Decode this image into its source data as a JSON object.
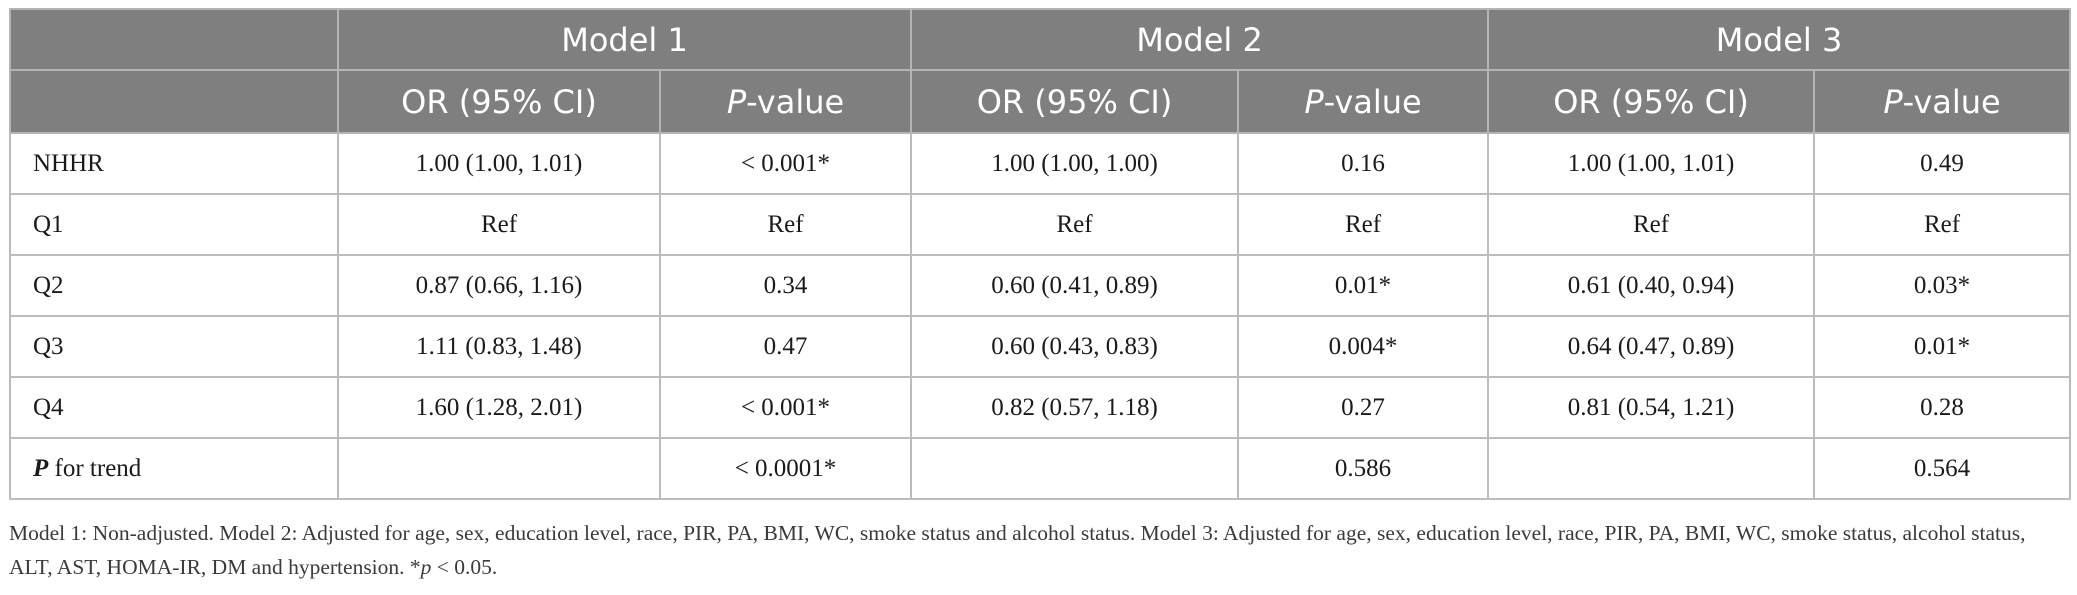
{
  "table": {
    "model_headers": [
      "Model 1",
      "Model 2",
      "Model 3"
    ],
    "sub_headers": {
      "or_label": "OR (95% CI)",
      "p_letter": "P",
      "p_rest": "-value"
    },
    "rows": [
      {
        "label": "NHHR",
        "cells": [
          "1.00 (1.00, 1.01)",
          "< 0.001*",
          "1.00 (1.00, 1.00)",
          "0.16",
          "1.00 (1.00, 1.01)",
          "0.49"
        ]
      },
      {
        "label": "Q1",
        "cells": [
          "Ref",
          "Ref",
          "Ref",
          "Ref",
          "Ref",
          "Ref"
        ]
      },
      {
        "label": "Q2",
        "cells": [
          "0.87 (0.66, 1.16)",
          "0.34",
          "0.60 (0.41, 0.89)",
          "0.01*",
          "0.61 (0.40, 0.94)",
          "0.03*"
        ]
      },
      {
        "label": "Q3",
        "cells": [
          "1.11 (0.83, 1.48)",
          "0.47",
          "0.60 (0.43, 0.83)",
          "0.004*",
          "0.64 (0.47, 0.89)",
          "0.01*"
        ]
      },
      {
        "label": "Q4",
        "cells": [
          "1.60 (1.28, 2.01)",
          "< 0.001*",
          "0.82 (0.57, 1.18)",
          "0.27",
          "0.81 (0.54, 1.21)",
          "0.28"
        ]
      }
    ],
    "trend_row": {
      "label_bold": "P",
      "label_rest": " for trend",
      "cells": [
        "",
        "< 0.0001*",
        "",
        "0.586",
        "",
        "0.564"
      ]
    }
  },
  "footnote": {
    "text": "Model 1: Non-adjusted. Model 2: Adjusted for age, sex, education level, race, PIR, PA, BMI, WC, smoke status and alcohol status. Model 3: Adjusted for age, sex, education level, race, PIR, PA, BMI, WC, smoke status, alcohol status, ALT, AST, HOMA-IR, DM and hypertension. *",
    "p_symbol": "p",
    "threshold": " < 0.05."
  }
}
